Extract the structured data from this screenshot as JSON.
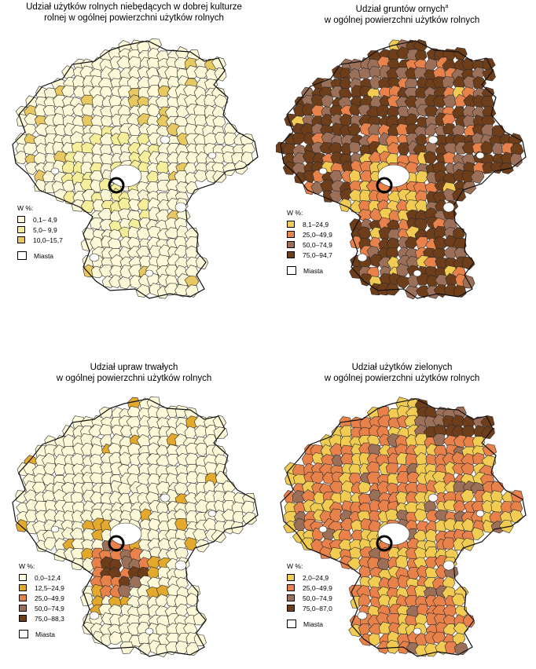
{
  "maps": [
    {
      "title_line1": "Udział użytków rolnych niebędących w dobrej kulturze",
      "title_line2": "rolnej w ogólnej powierzchni użytków rolnych",
      "superscript": "",
      "legend_heading": "W %:",
      "classes": [
        {
          "label": "0,1– 4,9",
          "color": "#fdf9d8"
        },
        {
          "label": "5,0– 9,9",
          "color": "#f6ee9a"
        },
        {
          "label": "10,0–15,7",
          "color": "#e8c860"
        }
      ],
      "cities_label": "Miasta"
    },
    {
      "title_line1": "Udział gruntów ornych",
      "title_line2": "w ogólnej powierzchni użytków rolnych",
      "superscript": "a",
      "legend_heading": "W %:",
      "classes": [
        {
          "label": "8,1–24,9",
          "color": "#f2cc52"
        },
        {
          "label": "25,0–49,9",
          "color": "#e8824a"
        },
        {
          "label": "50,0–74,9",
          "color": "#9c7058"
        },
        {
          "label": "75,0–94,7",
          "color": "#6e3d1a"
        }
      ],
      "cities_label": "Miasta"
    },
    {
      "title_line1": "Udział upraw trwałych",
      "title_line2": "w ogólnej powierzchni użytków rolnych",
      "superscript": "",
      "legend_heading": "W %:",
      "classes": [
        {
          "label": "0,0–12,4",
          "color": "#fdf9d8"
        },
        {
          "label": "12,5–24,9",
          "color": "#e2a92c"
        },
        {
          "label": "25,0–49,9",
          "color": "#e8824a"
        },
        {
          "label": "50,0–74,9",
          "color": "#9c7058"
        },
        {
          "label": "75,0–88,3",
          "color": "#6e3d1a"
        }
      ],
      "cities_label": "Miasta"
    },
    {
      "title_line1": "Udział użytków zielonych",
      "title_line2": "w ogólnej powierzchni użytków rolnych",
      "superscript": "",
      "legend_heading": "W %:",
      "classes": [
        {
          "label": "2,0–24,9",
          "color": "#f2cc52"
        },
        {
          "label": "25,0–49,9",
          "color": "#e8824a"
        },
        {
          "label": "50,0–74,9",
          "color": "#9c7058"
        },
        {
          "label": "75,0–87,0",
          "color": "#6e3d1a"
        }
      ],
      "cities_label": "Miasta"
    }
  ]
}
